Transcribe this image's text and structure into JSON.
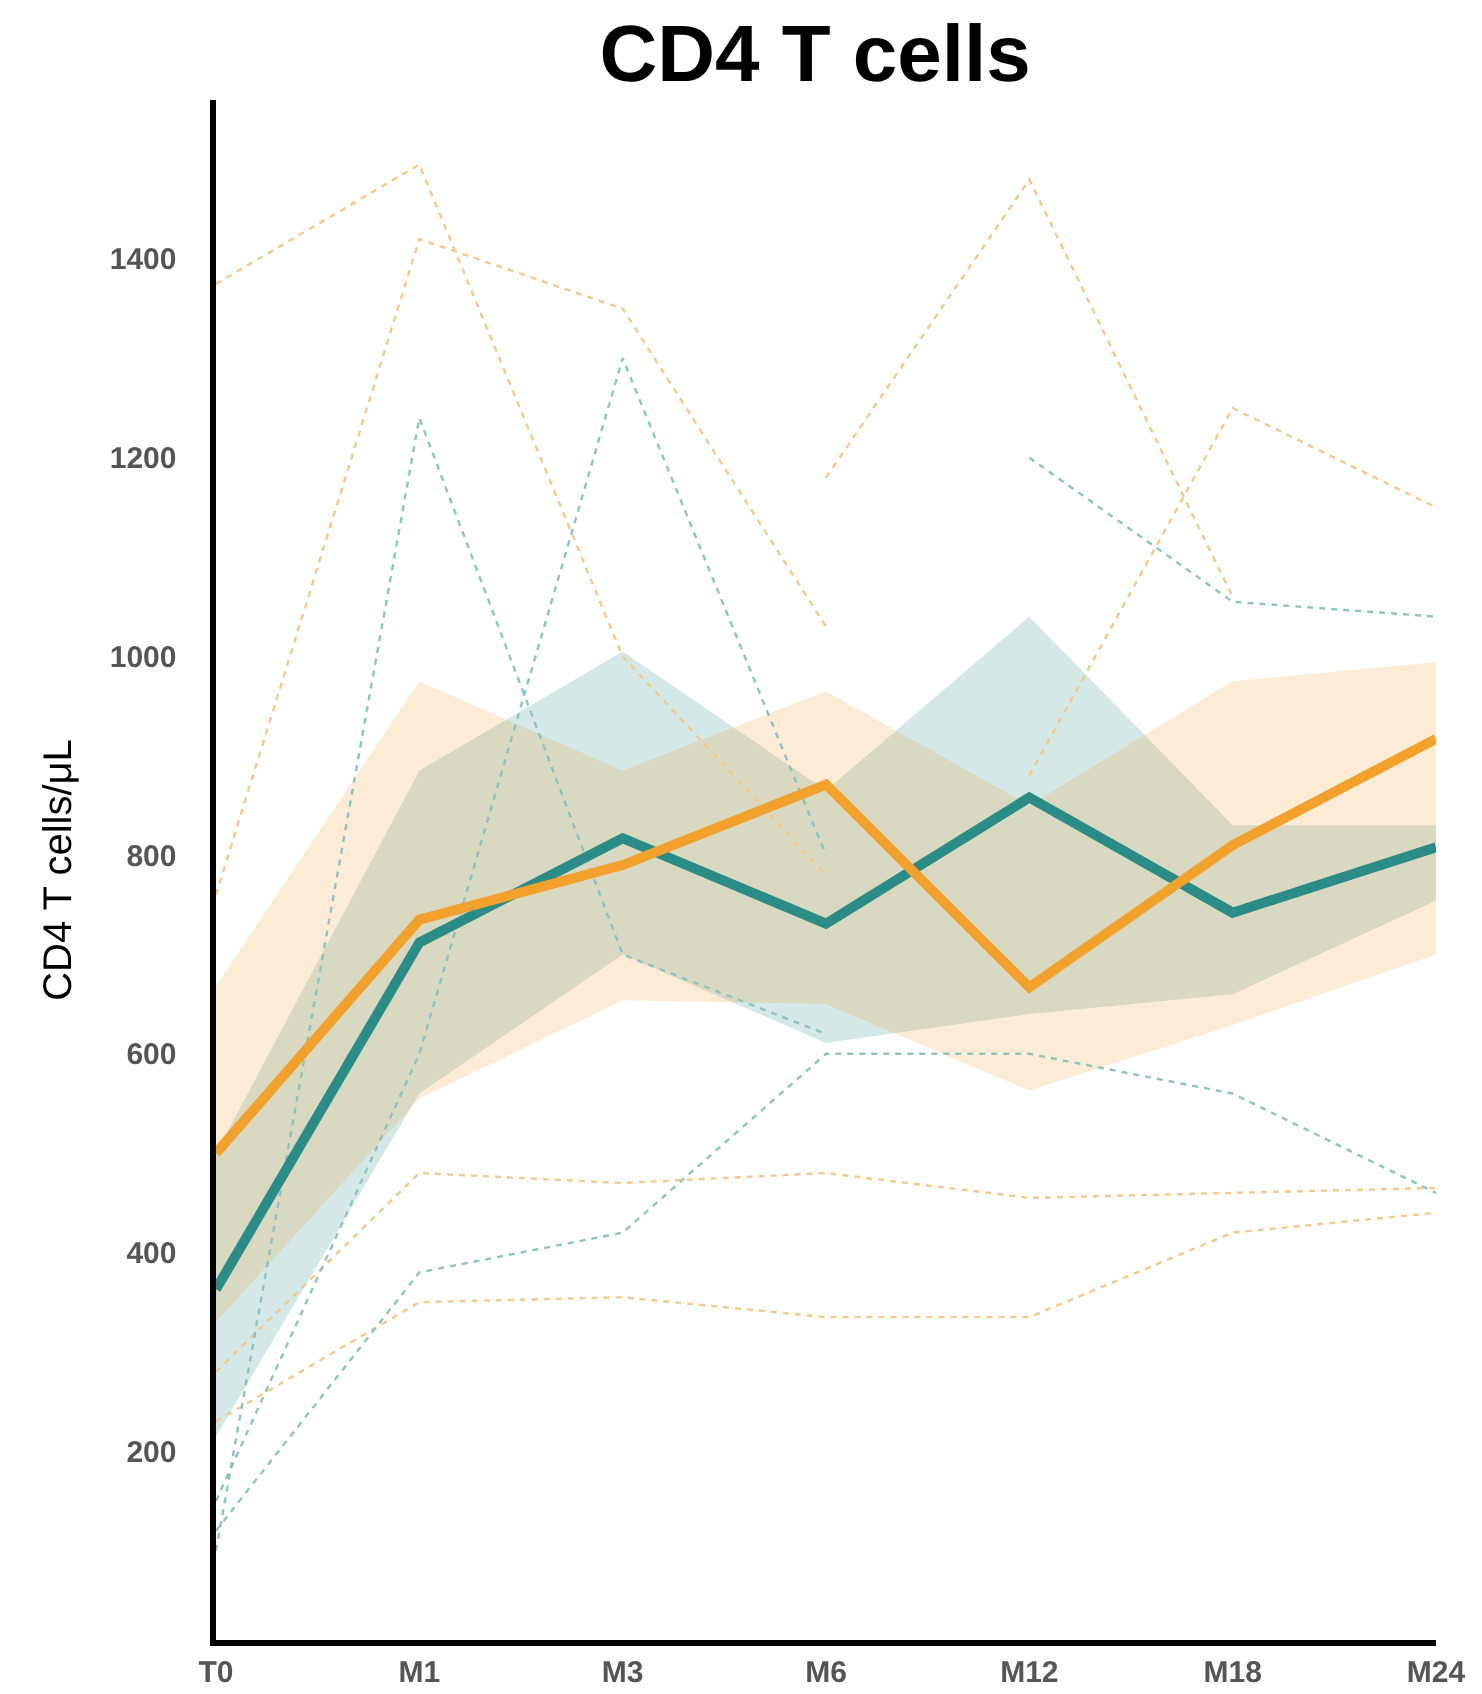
{
  "chart_data": {
    "type": "line",
    "title": "CD4 T cells",
    "ylabel": "CD4 T cells/μL",
    "categories": [
      "T0",
      "M1",
      "M3",
      "M6",
      "M12",
      "M18",
      "M24"
    ],
    "ylim": [
      10,
      1560
    ],
    "yticks": [
      200,
      400,
      600,
      800,
      1000,
      1200,
      1400
    ],
    "grid": false,
    "marker": "none",
    "series": [
      {
        "color": "#f5c98a",
        "line_style": "dotted",
        "values": [
          1375,
          1495,
          1000,
          780,
          null,
          null,
          null
        ]
      },
      {
        "color": "#f5c98a",
        "line_style": "dotted",
        "values": [
          760,
          1420,
          1350,
          1030,
          null,
          null,
          null
        ]
      },
      {
        "color": "#f5c98a",
        "line_style": "dotted",
        "values": [
          null,
          null,
          null,
          1180,
          1480,
          1060,
          null
        ]
      },
      {
        "color": "#f5c98a",
        "line_style": "dotted",
        "values": [
          230,
          350,
          355,
          335,
          335,
          420,
          440
        ]
      },
      {
        "color": "#f5c98a",
        "line_style": "dotted",
        "values": [
          280,
          480,
          470,
          480,
          455,
          460,
          465
        ]
      },
      {
        "color": "#f5c98a",
        "line_style": "dotted",
        "values": [
          null,
          null,
          null,
          null,
          880,
          1250,
          1150
        ]
      },
      {
        "color": "#8cc4c2",
        "line_style": "dotted",
        "values": [
          100,
          1240,
          700,
          620,
          null,
          null,
          null
        ]
      },
      {
        "color": "#8cc4c2",
        "line_style": "dotted",
        "values": [
          150,
          600,
          1300,
          800,
          null,
          null,
          null
        ]
      },
      {
        "color": "#8cc4c2",
        "line_style": "dotted",
        "values": [
          null,
          null,
          null,
          null,
          1200,
          1055,
          1040
        ]
      },
      {
        "color": "#8cc4c2",
        "line_style": "dotted",
        "values": [
          120,
          380,
          420,
          600,
          600,
          560,
          460
        ]
      },
      {
        "color": "#2a8b87",
        "line_style": "solid",
        "values": [
          363,
          712,
          817,
          731,
          858,
          742,
          808
        ],
        "lower": [
          215,
          560,
          700,
          611,
          640,
          660,
          754
        ],
        "upper": [
          500,
          885,
          1005,
          865,
          1040,
          830,
          830
        ]
      },
      {
        "color": "#f2a12c",
        "line_style": "solid",
        "values": [
          500,
          735,
          790,
          871,
          667,
          810,
          917
        ],
        "lower": [
          330,
          555,
          654,
          650,
          563,
          629,
          700
        ],
        "upper": [
          668,
          975,
          885,
          965,
          850,
          975,
          994
        ]
      }
    ]
  }
}
